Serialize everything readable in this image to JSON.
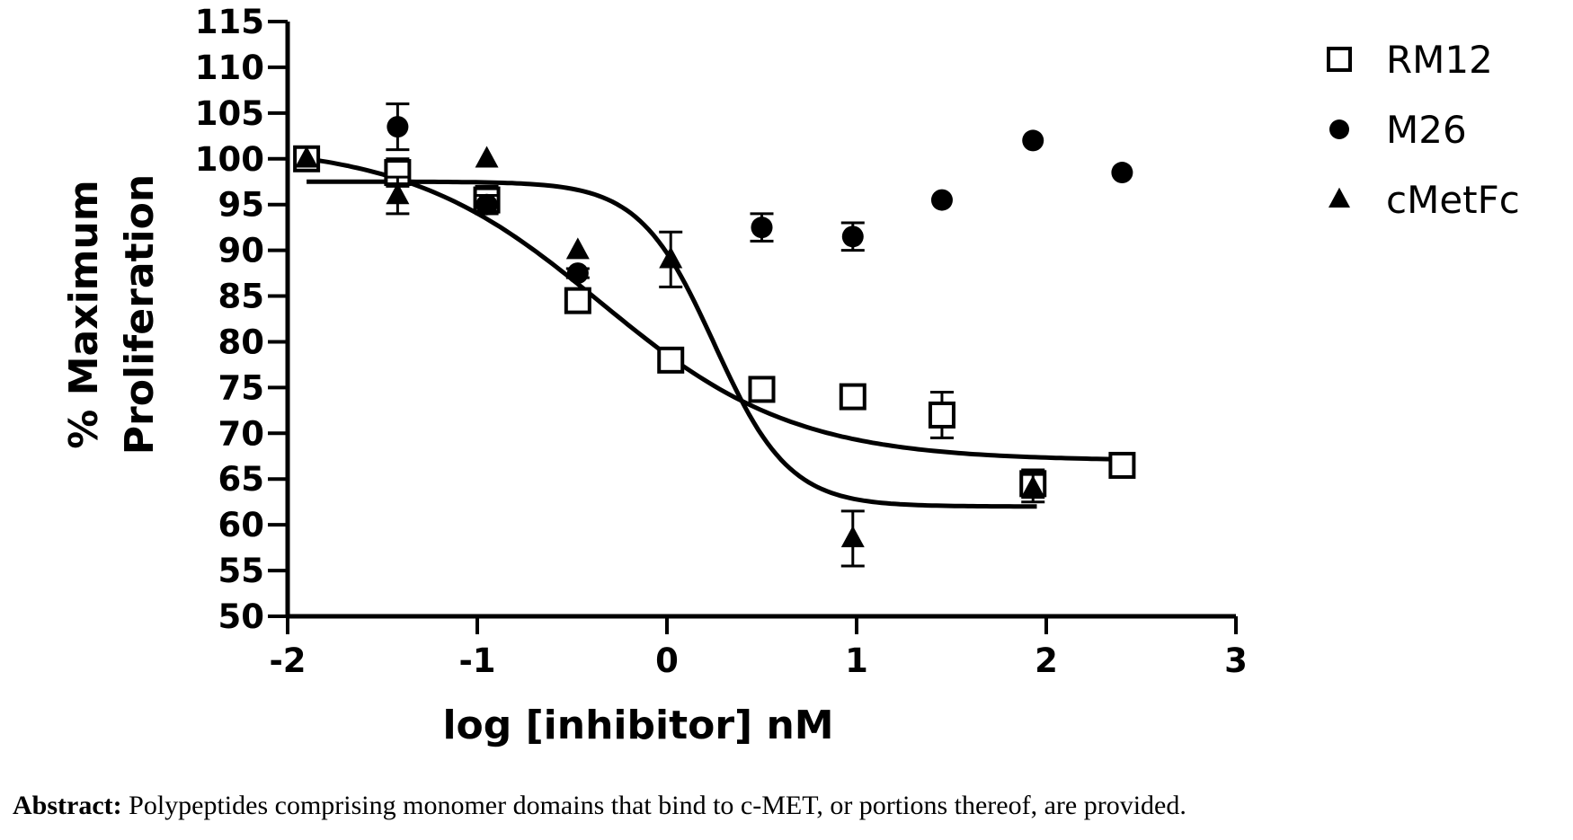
{
  "chart_data": {
    "type": "scatter",
    "xlabel": "log [inhibitor] nM",
    "ylabel_lines": [
      "% Maximum",
      "Proliferation"
    ],
    "xlim": [
      -2,
      3
    ],
    "ylim": [
      50,
      115
    ],
    "xticks": [
      -2,
      -1,
      0,
      1,
      2,
      3
    ],
    "yticks": [
      50,
      55,
      60,
      65,
      70,
      75,
      80,
      85,
      90,
      95,
      100,
      105,
      110,
      115
    ],
    "grid": false,
    "legend_position": "top-right",
    "series": [
      {
        "name": "RM12",
        "marker": "open-square",
        "points": [
          {
            "x": -1.9,
            "y": 100.0,
            "err": 0.5
          },
          {
            "x": -1.42,
            "y": 98.5,
            "err": 1.5
          },
          {
            "x": -0.95,
            "y": 95.5,
            "err": 1.5
          },
          {
            "x": -0.47,
            "y": 84.5,
            "err": 1.0
          },
          {
            "x": 0.02,
            "y": 78.0,
            "err": 0.5
          },
          {
            "x": 0.5,
            "y": 74.8,
            "err": 1.0
          },
          {
            "x": 0.98,
            "y": 74.0,
            "err": 1.0
          },
          {
            "x": 1.45,
            "y": 72.0,
            "err": 2.5
          },
          {
            "x": 1.93,
            "y": 64.5,
            "err": 1.5
          },
          {
            "x": 2.4,
            "y": 66.5,
            "err": 0.5
          }
        ],
        "fit": {
          "bottom": 67,
          "top": 101.6,
          "log_ec50": -0.35,
          "hill": -0.85,
          "x_from": -1.9,
          "x_to": 2.4
        }
      },
      {
        "name": "M26",
        "marker": "filled-circle",
        "points": [
          {
            "x": -1.42,
            "y": 103.5,
            "err": 2.5
          },
          {
            "x": -0.95,
            "y": 95.0,
            "err": 1.0
          },
          {
            "x": -0.47,
            "y": 87.5,
            "err": 0.5
          },
          {
            "x": 0.5,
            "y": 92.5,
            "err": 1.5
          },
          {
            "x": 0.98,
            "y": 91.5,
            "err": 1.5
          },
          {
            "x": 1.45,
            "y": 95.5,
            "err": 0
          },
          {
            "x": 1.93,
            "y": 102.0,
            "err": 0
          },
          {
            "x": 2.4,
            "y": 98.5,
            "err": 0
          }
        ]
      },
      {
        "name": "cMetFc",
        "marker": "filled-triangle",
        "points": [
          {
            "x": -1.9,
            "y": 100.0,
            "err": 0
          },
          {
            "x": -1.42,
            "y": 96.0,
            "err": 2.0
          },
          {
            "x": -0.95,
            "y": 100.0,
            "err": 0
          },
          {
            "x": -0.47,
            "y": 90.0,
            "err": 0
          },
          {
            "x": 0.02,
            "y": 89.0,
            "err": 3.0
          },
          {
            "x": 0.98,
            "y": 58.5,
            "err": 3.0
          },
          {
            "x": 1.93,
            "y": 64.0,
            "err": 1.5
          }
        ],
        "fit": {
          "bottom": 62,
          "top": 97.5,
          "log_ec50": 0.25,
          "hill": -2.2,
          "x_from": -1.9,
          "x_to": 1.95
        }
      }
    ]
  },
  "caption": {
    "label": "Abstract:",
    "text": " Polypeptides comprising monomer domains that bind to c-MET, or portions thereof, are provided."
  }
}
